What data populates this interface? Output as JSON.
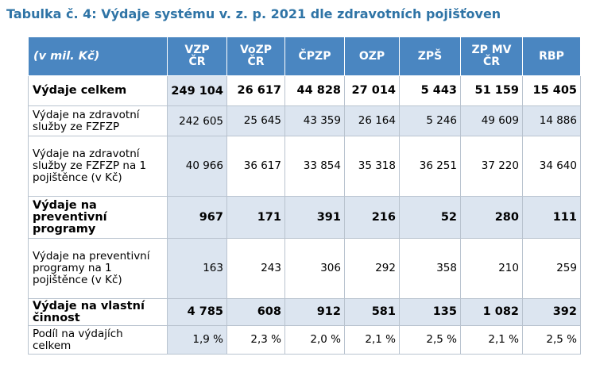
{
  "caption": "Tabulka č. 4: Výdaje systému v. z. p. 2021 dle zdravotních pojišťoven",
  "table": {
    "unit_header": "(v mil. Kč)",
    "columns": [
      {
        "line1": "VZP",
        "line2": "ČR"
      },
      {
        "line1": "VoZP",
        "line2": "ČR"
      },
      {
        "line1": "ČPZP",
        "line2": ""
      },
      {
        "line1": "OZP",
        "line2": ""
      },
      {
        "line1": "ZPŠ",
        "line2": ""
      },
      {
        "line1": "ZP MV",
        "line2": "ČR"
      },
      {
        "line1": "RBP",
        "line2": ""
      }
    ],
    "rows": [
      {
        "label": "Výdaje celkem",
        "values": [
          "249 104",
          "26 617",
          "44 828",
          "27 014",
          "5 443",
          "51 159",
          "15 405"
        ]
      },
      {
        "label": "Výdaje na zdravotní služby ze FZFZP",
        "values": [
          "242 605",
          "25 645",
          "43 359",
          "26 164",
          "5 246",
          "49 609",
          "14 886"
        ]
      },
      {
        "label": "Výdaje na zdravotní služby ze FZFZP na 1 pojištěnce (v Kč)",
        "values": [
          "40 966",
          "36 617",
          "33 854",
          "35 318",
          "36 251",
          "37 220",
          "34 640"
        ]
      },
      {
        "label": "Výdaje na preventivní programy",
        "values": [
          "967",
          "171",
          "391",
          "216",
          "52",
          "280",
          "111"
        ]
      },
      {
        "label": "Výdaje na preventivní programy na 1 pojištěnce (v Kč)",
        "values": [
          "163",
          "243",
          "306",
          "292",
          "358",
          "210",
          "259"
        ]
      },
      {
        "label": "Výdaje na vlastní činnost",
        "values": [
          "4 785",
          "608",
          "912",
          "581",
          "135",
          "1 082",
          "392"
        ]
      },
      {
        "label": "Podíl na výdajích celkem",
        "values": [
          "1,9 %",
          "2,3 %",
          "2,0 %",
          "2,1 %",
          "2,5 %",
          "2,1 %",
          "2,5 %"
        ]
      }
    ]
  }
}
